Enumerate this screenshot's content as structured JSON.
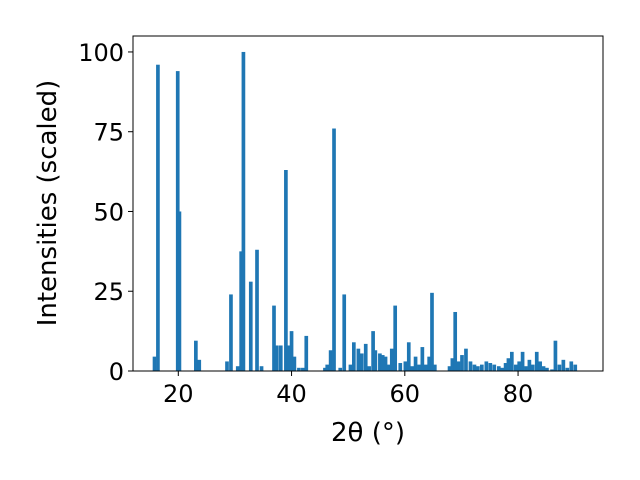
{
  "chart_data": {
    "type": "bar",
    "xlabel": "2θ (°)",
    "ylabel": "Intensities (scaled)",
    "xlim": [
      12,
      95
    ],
    "ylim": [
      0,
      105
    ],
    "grid": false,
    "bar_width": 0.65,
    "color": "#1f77b4",
    "xticks": [
      20,
      40,
      60,
      80
    ],
    "yticks": [
      0,
      25,
      50,
      75,
      100
    ],
    "x": [
      15.8,
      16.4,
      19.9,
      20.2,
      23.1,
      23.7,
      28.6,
      29.3,
      30.5,
      31.1,
      31.5,
      32.8,
      33.9,
      34.7,
      36.9,
      37.4,
      38.1,
      39.0,
      39.5,
      40.0,
      40.5,
      41.3,
      42.0,
      42.6,
      45.9,
      46.3,
      46.9,
      47.5,
      48.6,
      49.3,
      50.4,
      51.0,
      51.8,
      52.4,
      53.1,
      53.7,
      54.4,
      54.8,
      55.6,
      56.1,
      56.6,
      57.1,
      57.7,
      58.3,
      59.2,
      60.1,
      60.7,
      61.3,
      61.9,
      62.5,
      63.1,
      63.7,
      64.3,
      64.8,
      65.3,
      67.9,
      68.4,
      68.9,
      69.5,
      70.1,
      70.8,
      71.6,
      72.3,
      72.9,
      73.6,
      74.4,
      75.1,
      75.8,
      76.6,
      77.2,
      77.8,
      78.3,
      78.9,
      79.6,
      80.2,
      80.8,
      81.4,
      82.0,
      82.6,
      83.3,
      83.9,
      84.5,
      85.1,
      86.0,
      86.6,
      87.3,
      88.0,
      88.7,
      89.4,
      90.1
    ],
    "values": [
      4.5,
      96,
      94,
      50,
      9.5,
      3.5,
      3,
      24,
      1.5,
      37.5,
      100,
      28,
      38,
      1.5,
      20.5,
      8,
      8,
      63,
      8,
      12.5,
      4.5,
      1,
      1,
      11,
      1,
      2,
      6.5,
      76,
      1,
      24,
      2,
      9,
      7,
      5.5,
      8.5,
      1.5,
      12.5,
      6.5,
      5.5,
      5,
      4.5,
      2,
      7,
      20.5,
      2.5,
      3,
      9,
      1.5,
      4.5,
      2,
      7.5,
      2,
      4.5,
      24.5,
      2,
      1.5,
      4,
      18.5,
      3,
      5,
      7,
      3,
      2,
      1.5,
      2,
      3,
      2.5,
      2,
      1.5,
      1,
      2.5,
      4,
      6,
      2,
      3,
      6,
      1.5,
      3.5,
      2,
      6,
      3,
      1.5,
      1,
      0.5,
      9.5,
      2,
      3.5,
      1,
      3,
      2
    ]
  }
}
